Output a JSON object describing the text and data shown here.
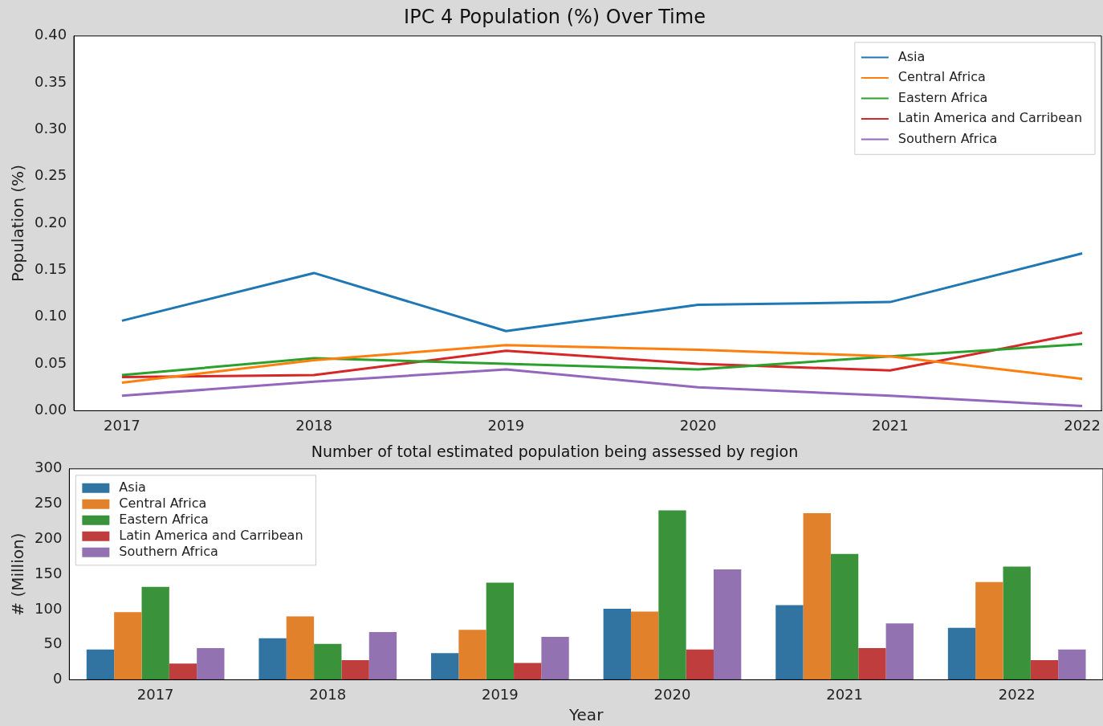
{
  "chart_data": [
    {
      "type": "line",
      "title": "IPC 4 Population (%) Over Time",
      "ylabel": "Population (%)",
      "x": [
        2017,
        2018,
        2019,
        2020,
        2021,
        2022
      ],
      "xlim": [
        2016.75,
        2022.1
      ],
      "xticks": [
        2017,
        2018,
        2019,
        2020,
        2021,
        2022
      ],
      "ylim": [
        0,
        0.4
      ],
      "yticks": [
        {
          "value": 0,
          "label": "0.00"
        },
        {
          "value": 0.05,
          "label": "0.05"
        },
        {
          "value": 0.1,
          "label": "0.10"
        },
        {
          "value": 0.15,
          "label": "0.15"
        },
        {
          "value": 0.2,
          "label": "0.20"
        },
        {
          "value": 0.25,
          "label": "0.25"
        },
        {
          "value": 0.3,
          "label": "0.30"
        },
        {
          "value": 0.35,
          "label": "0.35"
        },
        {
          "value": 0.4,
          "label": "0.40"
        }
      ],
      "grid": false,
      "legend": "top right",
      "marker": "none",
      "line_style": "solid",
      "series": [
        {
          "name": "Asia",
          "color": "#1f77b4",
          "values": [
            0.096,
            0.147,
            0.085,
            0.113,
            0.116,
            0.168
          ]
        },
        {
          "name": "Central Africa",
          "color": "#ff7f0e",
          "values": [
            0.03,
            0.054,
            0.07,
            0.065,
            0.058,
            0.034
          ]
        },
        {
          "name": "Eastern Africa",
          "color": "#2ca02c",
          "values": [
            0.038,
            0.056,
            0.05,
            0.044,
            0.058,
            0.071
          ]
        },
        {
          "name": "Latin America and Carribean",
          "color": "#d62728",
          "values": [
            0.036,
            0.038,
            0.064,
            0.05,
            0.043,
            0.083
          ]
        },
        {
          "name": "Southern Africa",
          "color": "#9467bd",
          "values": [
            0.016,
            0.031,
            0.044,
            0.025,
            0.016,
            0.005
          ]
        }
      ]
    },
    {
      "type": "bar",
      "title": "Number of total estimated population being assessed by region",
      "xlabel": "Year",
      "ylabel": "# (Million)",
      "categories": [
        "2017",
        "2018",
        "2019",
        "2020",
        "2021",
        "2022"
      ],
      "ylim": [
        0,
        300
      ],
      "yticks": [
        0,
        50,
        100,
        150,
        200,
        250,
        300
      ],
      "grid": false,
      "legend": "top left",
      "series": [
        {
          "name": "Asia",
          "color": "#3274a1",
          "values": [
            43,
            59,
            38,
            101,
            106,
            74
          ]
        },
        {
          "name": "Central Africa",
          "color": "#e1812c",
          "values": [
            96,
            90,
            71,
            97,
            237,
            139
          ]
        },
        {
          "name": "Eastern Africa",
          "color": "#3a923a",
          "values": [
            132,
            51,
            138,
            241,
            179,
            161
          ]
        },
        {
          "name": "Latin America and Carribean",
          "color": "#c03d3e",
          "values": [
            23,
            28,
            24,
            43,
            45,
            28
          ]
        },
        {
          "name": "Southern Africa",
          "color": "#9372b2",
          "values": [
            45,
            68,
            61,
            157,
            80,
            43
          ]
        }
      ]
    }
  ]
}
